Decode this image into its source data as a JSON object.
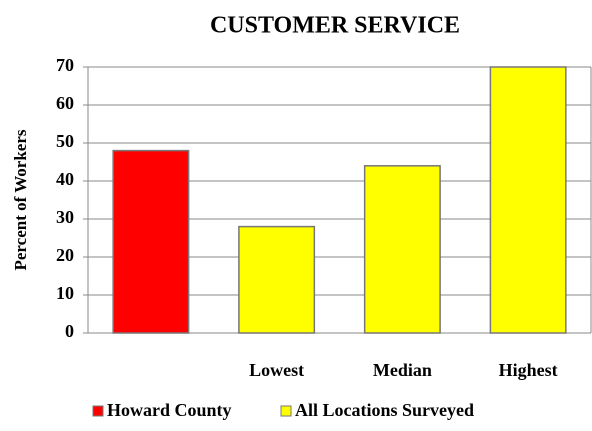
{
  "chart_data": {
    "type": "bar",
    "title": "CUSTOMER SERVICE",
    "y_label": "Percent of Workers",
    "categories": [
      null,
      "Lowest",
      "Median",
      "Highest"
    ],
    "series": [
      {
        "name": "Howard County",
        "color": "#ff0000",
        "values": [
          48,
          null,
          null,
          null
        ]
      },
      {
        "name": "All Locations Surveyed",
        "color": "#ffff00",
        "values": [
          null,
          28,
          44,
          70
        ]
      }
    ],
    "ylim": [
      0,
      70
    ],
    "yticks": [
      0,
      10,
      20,
      30,
      40,
      50,
      60,
      70
    ],
    "grid": true,
    "legend": "bottom"
  }
}
